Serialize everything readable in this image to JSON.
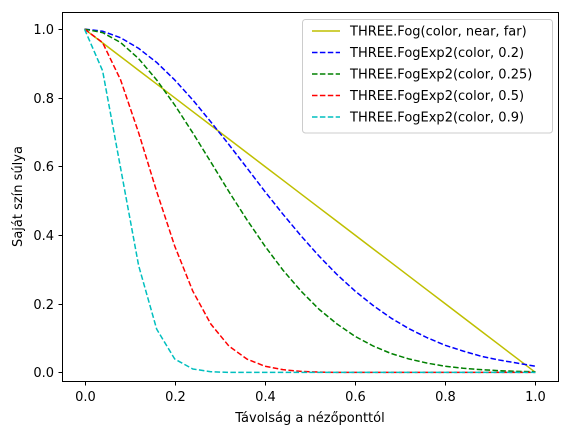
{
  "chart_data": {
    "type": "line",
    "xlabel": "Távolság a nézőponttól",
    "ylabel": "Saját szín súlya",
    "xlim": [
      -0.05,
      1.05
    ],
    "ylim": [
      -0.025,
      1.05
    ],
    "xticks": [
      0.0,
      0.2,
      0.4,
      0.6,
      0.8,
      1.0
    ],
    "xtick_labels": [
      "0.0",
      "0.2",
      "0.4",
      "0.6",
      "0.8",
      "1.0"
    ],
    "yticks": [
      0.0,
      0.2,
      0.4,
      0.6,
      0.8,
      1.0
    ],
    "ytick_labels": [
      "0.0",
      "0.2",
      "0.4",
      "0.6",
      "0.8",
      "1.0"
    ],
    "grid": false,
    "legend_position": "top-right",
    "x": [
      0.0,
      0.04,
      0.08,
      0.12,
      0.16,
      0.2,
      0.24,
      0.28,
      0.32,
      0.36,
      0.4,
      0.44,
      0.48,
      0.52,
      0.56,
      0.6,
      0.64,
      0.68,
      0.72,
      0.76,
      0.8,
      0.84,
      0.88,
      0.92,
      0.96,
      1.0
    ],
    "series": [
      {
        "name": "THREE.Fog(color, near, far)",
        "color": "#bfbf00",
        "dash": "solid",
        "values": [
          1.0,
          0.96,
          0.92,
          0.88,
          0.84,
          0.8,
          0.76,
          0.72,
          0.68,
          0.64,
          0.6,
          0.56,
          0.52,
          0.48,
          0.44,
          0.4,
          0.36,
          0.32,
          0.28,
          0.24,
          0.2,
          0.16,
          0.12,
          0.08,
          0.04,
          0.0
        ]
      },
      {
        "name": "THREE.FogExp2(color, 0.2)",
        "color": "#0000ff",
        "dash": "dashed",
        "values": [
          1.0,
          0.994,
          0.975,
          0.944,
          0.903,
          0.852,
          0.794,
          0.73,
          0.664,
          0.596,
          0.527,
          0.461,
          0.398,
          0.339,
          0.285,
          0.237,
          0.195,
          0.158,
          0.127,
          0.101,
          0.079,
          0.062,
          0.047,
          0.036,
          0.027,
          0.018
        ]
      },
      {
        "name": "THREE.FogExp2(color, 0.25)",
        "color": "#008000",
        "dash": "dashed",
        "values": [
          1.0,
          0.99,
          0.961,
          0.914,
          0.852,
          0.779,
          0.698,
          0.613,
          0.527,
          0.445,
          0.368,
          0.298,
          0.237,
          0.184,
          0.141,
          0.105,
          0.077,
          0.055,
          0.039,
          0.027,
          0.018,
          0.012,
          0.008,
          0.005,
          0.003,
          0.002
        ]
      },
      {
        "name": "THREE.FogExp2(color, 0.5)",
        "color": "#ff0000",
        "dash": "dashed",
        "values": [
          1.0,
          0.961,
          0.852,
          0.698,
          0.527,
          0.368,
          0.237,
          0.141,
          0.077,
          0.039,
          0.018,
          0.008,
          0.003,
          0.001,
          0.0,
          0.0,
          0.0,
          0.0,
          0.0,
          0.0,
          0.0,
          0.0,
          0.0,
          0.0,
          0.0,
          0.0
        ]
      },
      {
        "name": "THREE.FogExp2(color, 0.9)",
        "color": "#00bfbf",
        "dash": "dashed",
        "values": [
          1.0,
          0.879,
          0.595,
          0.311,
          0.126,
          0.039,
          0.01,
          0.002,
          0.0,
          0.0,
          0.0,
          0.0,
          0.0,
          0.0,
          0.0,
          0.0,
          0.0,
          0.0,
          0.0,
          0.0,
          0.0,
          0.0,
          0.0,
          0.0,
          0.0,
          0.0
        ]
      }
    ]
  }
}
